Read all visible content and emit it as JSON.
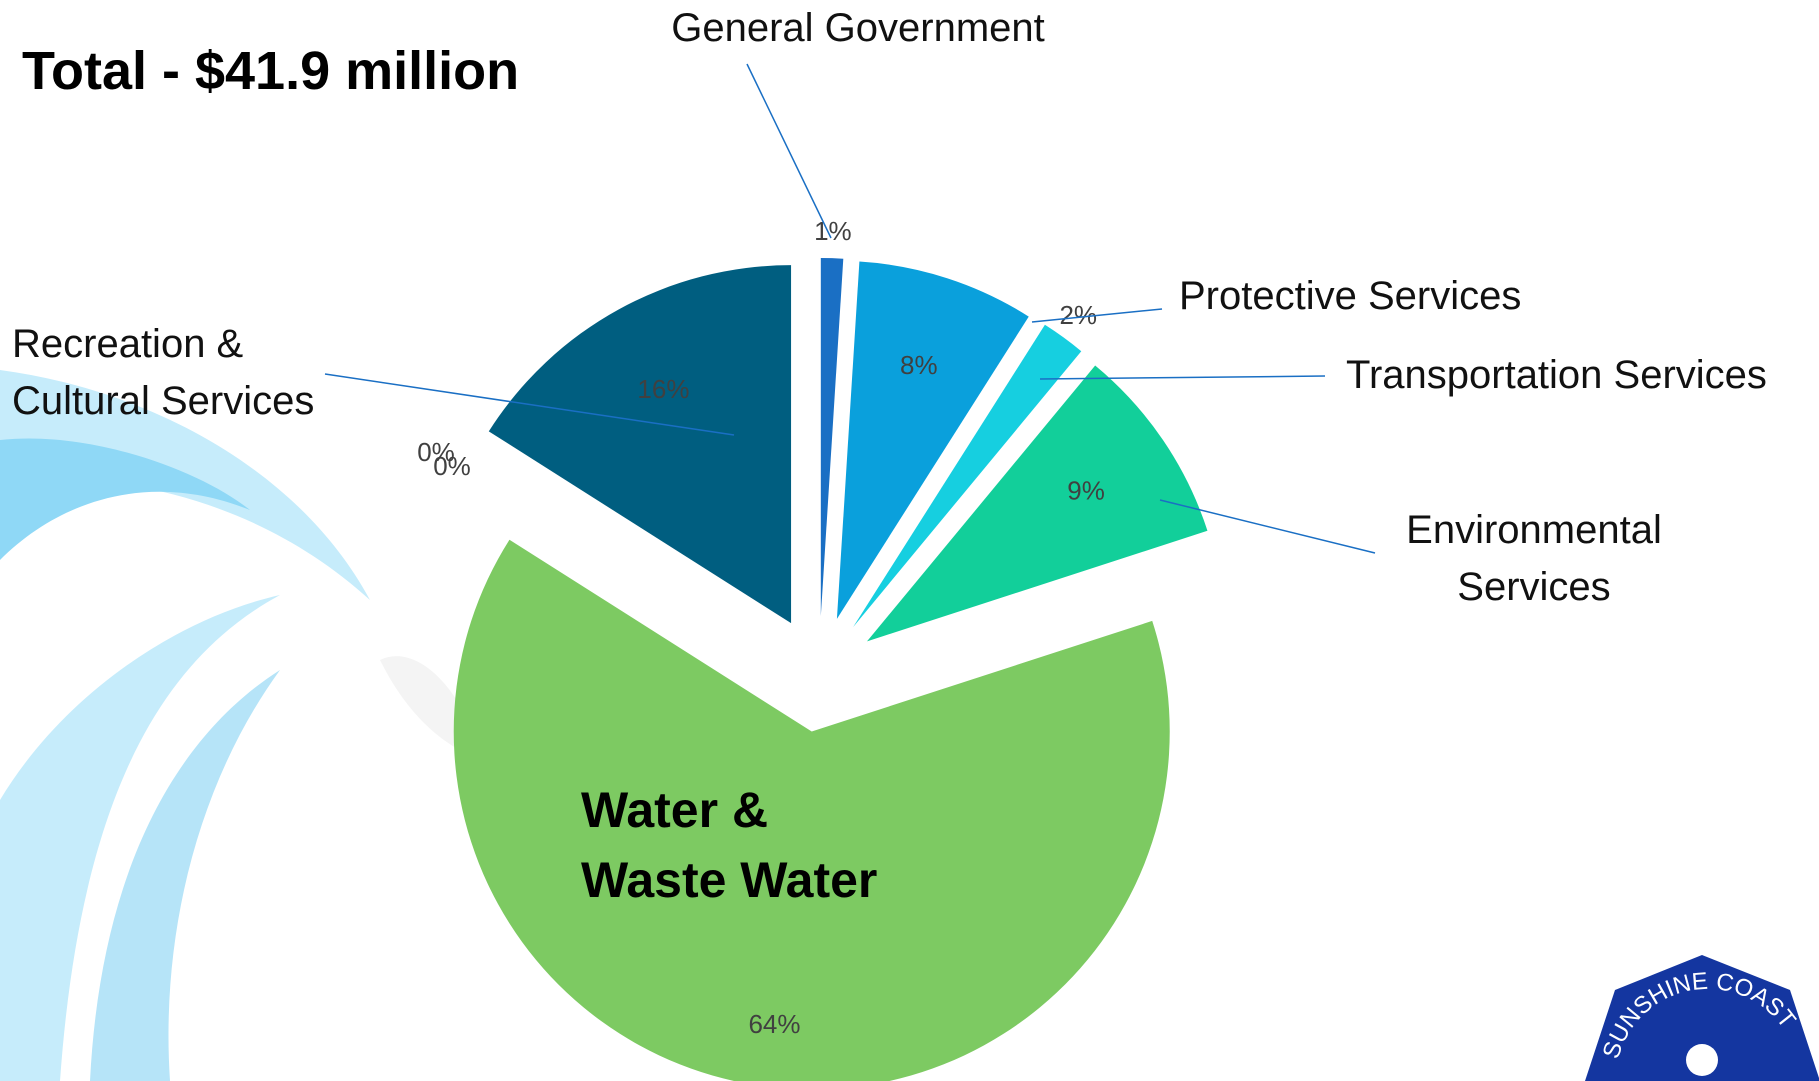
{
  "title": "Total - $41.9 million",
  "chart_data": {
    "type": "pie",
    "categories": [
      "General Government",
      "Protective Services",
      "Transportation Services",
      "Environmental\nServices",
      "Water &\nWaste Water",
      null,
      null,
      "Recreation &\nCultural Services"
    ],
    "values": [
      1,
      8,
      2,
      9,
      64,
      0,
      0,
      16
    ],
    "value_labels": [
      "1%",
      "8%",
      "2%",
      "9%",
      "64%",
      "0%",
      "0%",
      "16%"
    ],
    "colors": [
      "#1a6fc4",
      "#0aa0dc",
      "#16cfe0",
      "#12cf9a",
      "#7dca62",
      "#4aa0c8",
      "#4aa0c8",
      "#005e80"
    ]
  },
  "logo": {
    "text": "SUNSHINE COAST"
  }
}
